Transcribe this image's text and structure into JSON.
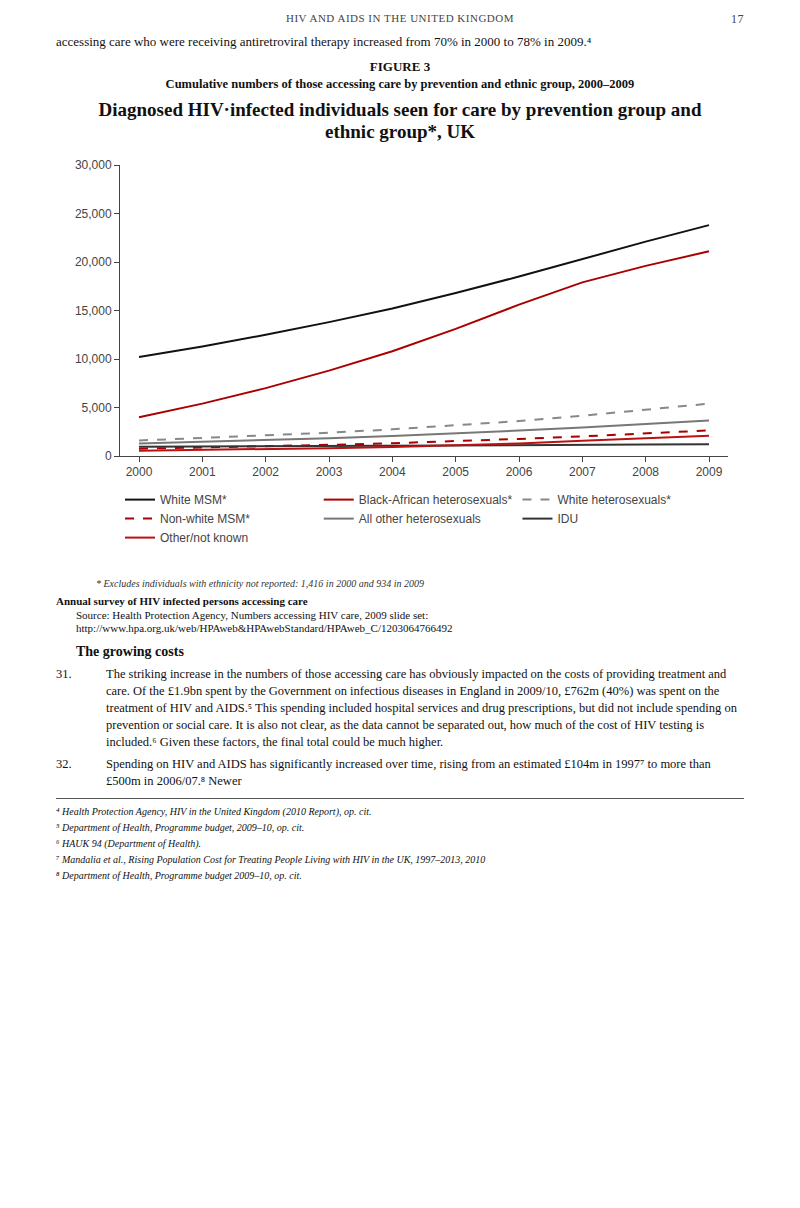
{
  "chart_data": {
    "type": "line",
    "title": "Diagnosed HIV·infected individuals seen for care by prevention group and ethnic group*, UK",
    "x": [
      2000,
      2001,
      2002,
      2003,
      2004,
      2005,
      2006,
      2007,
      2008,
      2009
    ],
    "series": [
      {
        "name": "White MSM*",
        "color": "#111111",
        "line_style": "solid",
        "values": [
          10200,
          11300,
          12500,
          13800,
          15200,
          16800,
          18500,
          20300,
          22100,
          23800
        ]
      },
      {
        "name": "Black-African heterosexuals*",
        "color": "#aa0000",
        "line_style": "solid",
        "values": [
          4000,
          5400,
          7000,
          8800,
          10800,
          13100,
          15600,
          17900,
          19600,
          21100
        ]
      },
      {
        "name": "White heterosexuals*",
        "color": "#888888",
        "line_style": "dashed",
        "values": [
          1600,
          1850,
          2100,
          2400,
          2750,
          3150,
          3600,
          4150,
          4750,
          5400
        ]
      },
      {
        "name": "Non-white MSM*",
        "color": "#aa0000",
        "line_style": "dashed",
        "values": [
          750,
          870,
          1000,
          1150,
          1320,
          1520,
          1760,
          2020,
          2310,
          2640
        ]
      },
      {
        "name": "All other heterosexuals",
        "color": "#777777",
        "line_style": "solid",
        "values": [
          1300,
          1450,
          1620,
          1820,
          2060,
          2320,
          2620,
          2940,
          3280,
          3650
        ]
      },
      {
        "name": "IDU",
        "color": "#333333",
        "line_style": "solid",
        "values": [
          950,
          970,
          990,
          1010,
          1030,
          1060,
          1100,
          1140,
          1180,
          1220
        ]
      },
      {
        "name": "Other/not known",
        "color": "#bb1111",
        "line_style": "solid",
        "values": [
          550,
          620,
          710,
          810,
          940,
          1100,
          1300,
          1560,
          1820,
          2100
        ]
      }
    ],
    "xlim": [
      1999.7,
      2009.3
    ],
    "xticks": [
      2000,
      2001,
      2002,
      2003,
      2004,
      2005,
      2006,
      2007,
      2008,
      2009
    ],
    "ylim": [
      0,
      30000
    ],
    "yticks": [
      0,
      {
        "value": 5000,
        "label": "5,000"
      },
      {
        "value": 10000,
        "label": "10,000"
      },
      {
        "value": 15000,
        "label": "15,000"
      },
      {
        "value": 20000,
        "label": "20,000"
      },
      {
        "value": 25000,
        "label": "25,000"
      },
      {
        "value": 30000,
        "label": "30,000"
      }
    ],
    "grid": false,
    "legend": "bottom",
    "annotations": [
      "HIV AND AIDS IN THE UNITED KINGDOM",
      "17",
      "accessing care who were receiving antiretroviral therapy increased from 70% in 2000 to 78% in 2009.⁴",
      "FIGURE 3",
      "Cumulative numbers of those accessing care by prevention and ethnic group, 2000–2009",
      "* Excludes individuals with ethnicity not reported: 1,416 in 2000 and 934 in 2009",
      "Annual survey of HIV infected persons accessing care",
      "Source: Health Protection Agency, Numbers accessing HIV care, 2009 slide set:",
      "http://www.hpa.org.uk/web/HPAweb&HPAwebStandard/HPAweb_C/1203064766492",
      "The growing costs",
      "31.",
      "The striking increase in the numbers of those accessing care has obviously impacted on the costs of providing treatment and care. Of the £1.9bn spent by the Government on infectious diseases in England in 2009/10, £762m (40%) was spent on the treatment of HIV and AIDS.⁵ This spending included hospital services and drug prescriptions, but did not include spending on prevention or social care. It is also not clear, as the data cannot be separated out, how much of the cost of HIV testing is included.⁶ Given these factors, the final total could be much higher.",
      "32.",
      "Spending on HIV and AIDS has significantly increased over time, rising from an estimated £104m in 1997⁷ to more than £500m in 2006/07.⁸ Newer",
      "⁴ Health Protection Agency, HIV in the United Kingdom (2010 Report), op. cit.",
      "⁵ Department of Health, Programme budget, 2009–10, op. cit.",
      "⁶ HAUK 94 (Department of Health).",
      "⁷ Mandalia et al., Rising Population Cost for Treating People Living with HIV in the UK, 1997–2013, 2010",
      "⁸ Department of Health, Programme budget 2009–10, op. cit."
    ]
  }
}
